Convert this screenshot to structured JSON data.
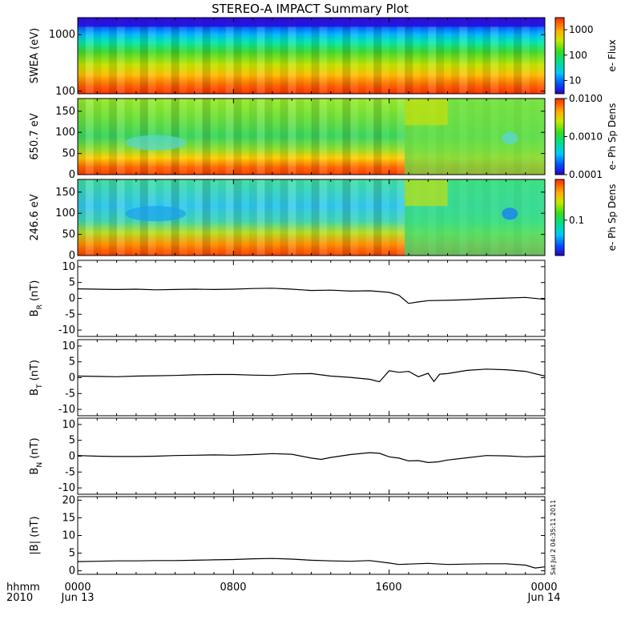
{
  "title": "STEREO-A IMPACT Summary Plot",
  "footer": {
    "time_label": "hhmm",
    "year": "2010",
    "ticks": [
      {
        "time": "0000",
        "date": "Jun 13"
      },
      {
        "time": "0800",
        "date": ""
      },
      {
        "time": "1600",
        "date": ""
      },
      {
        "time": "0000",
        "date": "Jun 14"
      }
    ]
  },
  "stamp": "Sat Jul  2 04:35:11 2011",
  "chart_data": [
    {
      "type": "heatmap",
      "ylabel": "SWEA (eV)",
      "yscale": "log",
      "ylim": [
        90,
        2000
      ],
      "yticks": [
        "1000",
        "100"
      ],
      "ytick_values": [
        1000,
        100
      ],
      "colorbar": {
        "label": "e- Flux",
        "scale": "log",
        "range": [
          3,
          3000
        ],
        "ticks": [
          "1000",
          "100",
          "10"
        ],
        "tick_values": [
          1000,
          100,
          10
        ]
      },
      "x_range_hours": [
        0,
        24
      ]
    },
    {
      "type": "heatmap",
      "ylabel": "650.7 eV",
      "ylim": [
        0,
        180
      ],
      "yticks": [
        "150",
        "100",
        "50",
        "0"
      ],
      "ytick_values": [
        150,
        100,
        50,
        0
      ],
      "colorbar": {
        "label": "e- Ph Sp Dens",
        "scale": "log",
        "range": [
          0.0001,
          0.01
        ],
        "ticks": [
          "0.0100",
          "0.0010",
          "0.0001"
        ],
        "tick_values": [
          0.01,
          0.001,
          0.0001
        ]
      },
      "x_range_hours": [
        0,
        24
      ]
    },
    {
      "type": "heatmap",
      "ylabel": "246.6 eV",
      "ylim": [
        0,
        180
      ],
      "yticks": [
        "150",
        "100",
        "50",
        "0"
      ],
      "ytick_values": [
        150,
        100,
        50,
        0
      ],
      "colorbar": {
        "label": "e- Ph Sp Dens",
        "scale": "log",
        "range": [
          0.03,
          0.4
        ],
        "ticks": [
          "0.1"
        ],
        "tick_values": [
          0.1
        ]
      },
      "x_range_hours": [
        0,
        24
      ]
    },
    {
      "type": "line",
      "ylabel_main": "B",
      "ylabel_sub": "R",
      "ylabel_unit": " (nT)",
      "ylim": [
        -12,
        12
      ],
      "yticks": [
        "10",
        "5",
        "0",
        "-5",
        "-10"
      ],
      "ytick_values": [
        10,
        5,
        0,
        -5,
        -10
      ],
      "x": [
        0,
        1,
        2,
        3,
        4,
        5,
        6,
        7,
        8,
        9,
        10,
        11,
        12,
        13,
        14,
        15,
        16,
        16.5,
        17,
        17.5,
        18,
        19,
        20,
        21,
        22,
        23,
        24
      ],
      "values": [
        3.0,
        2.9,
        2.8,
        2.9,
        2.7,
        2.8,
        2.9,
        2.8,
        2.9,
        3.1,
        3.2,
        2.9,
        2.5,
        2.6,
        2.3,
        2.4,
        1.9,
        1.0,
        -1.6,
        -1.1,
        -0.7,
        -0.6,
        -0.4,
        -0.1,
        0.1,
        0.3,
        -0.3
      ]
    },
    {
      "type": "line",
      "ylabel_main": "B",
      "ylabel_sub": "T",
      "ylabel_unit": " (nT)",
      "ylim": [
        -12,
        12
      ],
      "yticks": [
        "10",
        "5",
        "0",
        "-5",
        "-10"
      ],
      "ytick_values": [
        10,
        5,
        0,
        -5,
        -10
      ],
      "x": [
        0,
        1,
        2,
        3,
        4,
        5,
        6,
        7,
        8,
        9,
        10,
        11,
        12,
        13,
        14,
        15,
        15.5,
        16,
        16.5,
        17,
        17.5,
        18,
        18.3,
        18.6,
        19,
        20,
        21,
        22,
        23,
        24
      ],
      "values": [
        0.5,
        0.4,
        0.3,
        0.5,
        0.6,
        0.7,
        0.9,
        1.0,
        1.0,
        0.8,
        0.7,
        1.2,
        1.3,
        0.5,
        0.1,
        -0.5,
        -1.3,
        2.2,
        1.7,
        2.0,
        0.3,
        1.4,
        -1.2,
        1.1,
        1.3,
        2.3,
        2.7,
        2.5,
        2.0,
        0.5
      ]
    },
    {
      "type": "line",
      "ylabel_main": "B",
      "ylabel_sub": "N",
      "ylabel_unit": " (nT)",
      "ylim": [
        -12,
        12
      ],
      "yticks": [
        "10",
        "5",
        "0",
        "-5",
        "-10"
      ],
      "ytick_values": [
        10,
        5,
        0,
        -5,
        -10
      ],
      "x": [
        0,
        1,
        2,
        3,
        4,
        5,
        6,
        7,
        8,
        9,
        10,
        11,
        12,
        12.5,
        13,
        14,
        15,
        15.5,
        16,
        16.5,
        17,
        17.5,
        18,
        18.5,
        19,
        20,
        21,
        22,
        23,
        24
      ],
      "values": [
        0.2,
        0.0,
        -0.1,
        -0.1,
        0.0,
        0.2,
        0.3,
        0.4,
        0.3,
        0.5,
        0.8,
        0.6,
        -0.6,
        -1.0,
        -0.4,
        0.5,
        1.1,
        0.9,
        -0.2,
        -0.6,
        -1.5,
        -1.4,
        -2.0,
        -1.8,
        -1.2,
        -0.5,
        0.2,
        0.1,
        -0.2,
        0.0
      ]
    },
    {
      "type": "line",
      "ylabel_main": "|B|",
      "ylabel_sub": "",
      "ylabel_unit": " (nT)",
      "ylim": [
        -1,
        21
      ],
      "yticks": [
        "20",
        "15",
        "10",
        "5",
        "0"
      ],
      "ytick_values": [
        20,
        15,
        10,
        5,
        0
      ],
      "x": [
        0,
        1,
        2,
        3,
        4,
        5,
        6,
        7,
        8,
        9,
        10,
        11,
        12,
        13,
        14,
        15,
        16,
        16.5,
        17,
        18,
        19,
        20,
        21,
        22,
        23,
        23.5,
        24
      ],
      "values": [
        2.6,
        2.7,
        2.8,
        2.8,
        2.9,
        2.9,
        3.0,
        3.1,
        3.2,
        3.4,
        3.5,
        3.3,
        3.0,
        2.8,
        2.7,
        2.9,
        2.2,
        1.8,
        1.9,
        2.1,
        1.8,
        1.9,
        2.0,
        2.0,
        1.6,
        0.8,
        1.1
      ]
    }
  ]
}
